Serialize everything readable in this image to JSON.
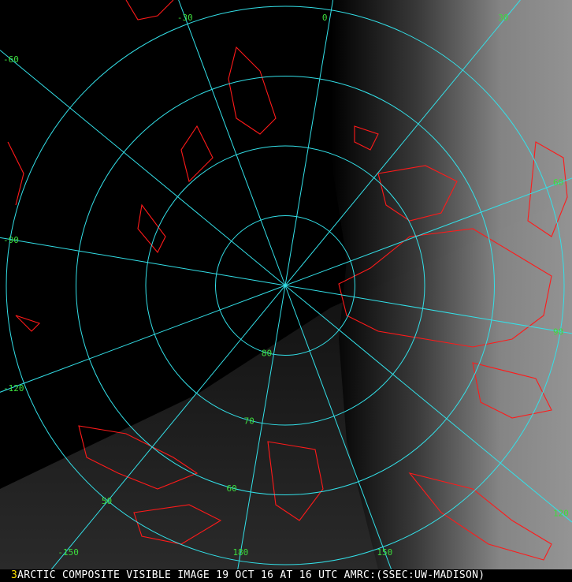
{
  "map": {
    "projection": "polar stereographic (north pole)",
    "colors": {
      "grid": "#33e0e8",
      "grid_label": "#3ddc3d",
      "coastline": "#ff1a1a",
      "background": "#000000",
      "clouds": "#8a8a8a"
    },
    "latitude_circles": [
      {
        "lat": 80,
        "label": "80"
      },
      {
        "lat": 70,
        "label": "70"
      },
      {
        "lat": 60,
        "label": "60"
      },
      {
        "lat": 50,
        "label": "50"
      }
    ],
    "meridians": [
      {
        "lon": 0,
        "label": "0"
      },
      {
        "lon": 30,
        "label": "30"
      },
      {
        "lon": 60,
        "label": "60"
      },
      {
        "lon": 90,
        "label": "90"
      },
      {
        "lon": 120,
        "label": "120"
      },
      {
        "lon": 150,
        "label": "150"
      },
      {
        "lon": 180,
        "label": "180"
      },
      {
        "lon": -150,
        "label": "-150"
      },
      {
        "lon": -120,
        "label": "-120"
      },
      {
        "lon": -90,
        "label": "-90"
      },
      {
        "lon": -60,
        "label": "-60"
      },
      {
        "lon": -30,
        "label": "-30"
      }
    ]
  },
  "caption": {
    "frame_number": "3",
    "text": "ARCTIC COMPOSITE VISIBLE IMAGE 19 OCT 16 AT 16 UTC AMRC:(SSEC:UW-MADISON)"
  }
}
